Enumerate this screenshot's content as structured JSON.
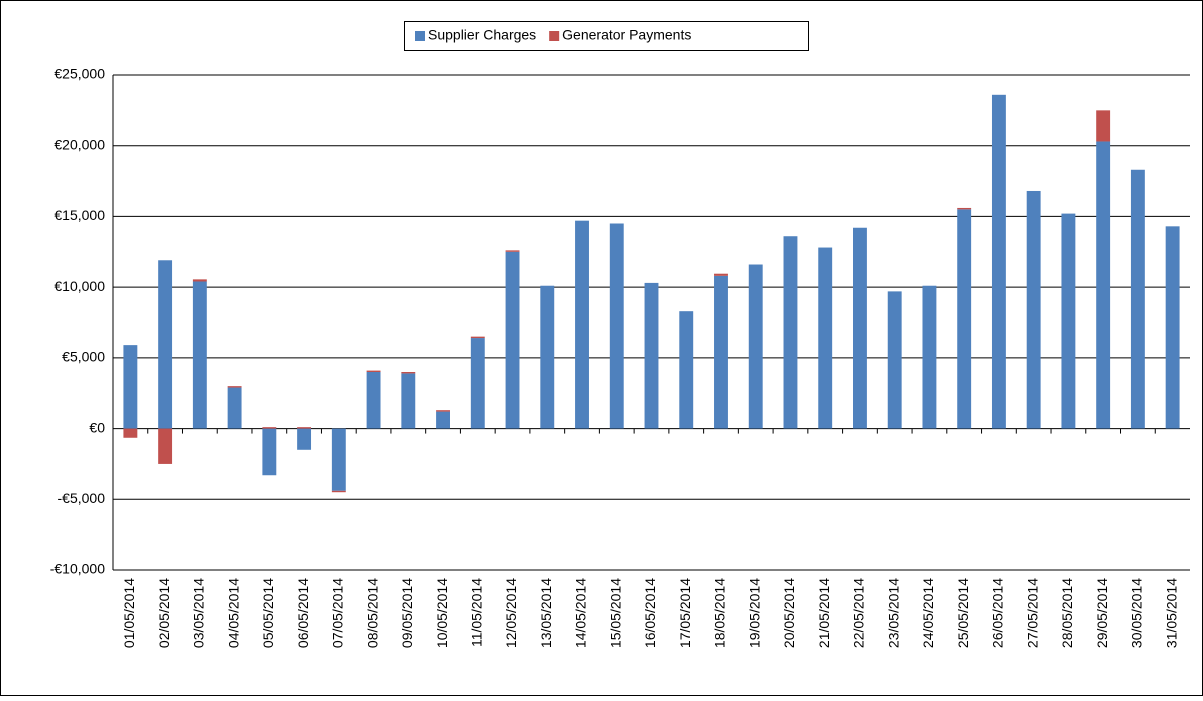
{
  "chart_data": {
    "type": "stacked_bar",
    "categories": [
      "01/05/2014",
      "02/05/2014",
      "03/05/2014",
      "04/05/2014",
      "05/05/2014",
      "06/05/2014",
      "07/05/2014",
      "08/05/2014",
      "09/05/2014",
      "10/05/2014",
      "11/05/2014",
      "12/05/2014",
      "13/05/2014",
      "14/05/2014",
      "15/05/2014",
      "16/05/2014",
      "17/05/2014",
      "18/05/2014",
      "19/05/2014",
      "20/05/2014",
      "21/05/2014",
      "22/05/2014",
      "23/05/2014",
      "24/05/2014",
      "25/05/2014",
      "26/05/2014",
      "27/05/2014",
      "28/05/2014",
      "29/05/2014",
      "30/05/2014",
      "31/05/2014"
    ],
    "series": [
      {
        "name": "Supplier Charges",
        "color": "#4f81bd",
        "values": [
          5900,
          11900,
          10400,
          2900,
          -3300,
          -1500,
          -4400,
          4000,
          3900,
          1200,
          6400,
          12500,
          10100,
          14700,
          14500,
          10300,
          8300,
          10800,
          11600,
          13600,
          12800,
          14200,
          9700,
          10100,
          15500,
          23600,
          16800,
          15200,
          20300,
          18300,
          14300
        ]
      },
      {
        "name": "Generator Payments",
        "color": "#c0504d",
        "values": [
          -650,
          -2500,
          150,
          100,
          100,
          100,
          -100,
          100,
          100,
          100,
          100,
          100,
          0,
          0,
          0,
          0,
          0,
          150,
          0,
          0,
          0,
          0,
          0,
          0,
          100,
          0,
          0,
          0,
          2200,
          0,
          0
        ]
      }
    ],
    "ylim": [
      -10000,
      25000
    ],
    "yticks": [
      {
        "value": -10000,
        "label": "-€10,000"
      },
      {
        "value": -5000,
        "label": "-€5,000"
      },
      {
        "value": 0,
        "label": "€0"
      },
      {
        "value": 5000,
        "label": "€5,000"
      },
      {
        "value": 10000,
        "label": "€10,000"
      },
      {
        "value": 15000,
        "label": "€15,000"
      },
      {
        "value": 20000,
        "label": "€20,000"
      },
      {
        "value": 25000,
        "label": "€25,000"
      }
    ],
    "grid": true,
    "legend": "top"
  }
}
